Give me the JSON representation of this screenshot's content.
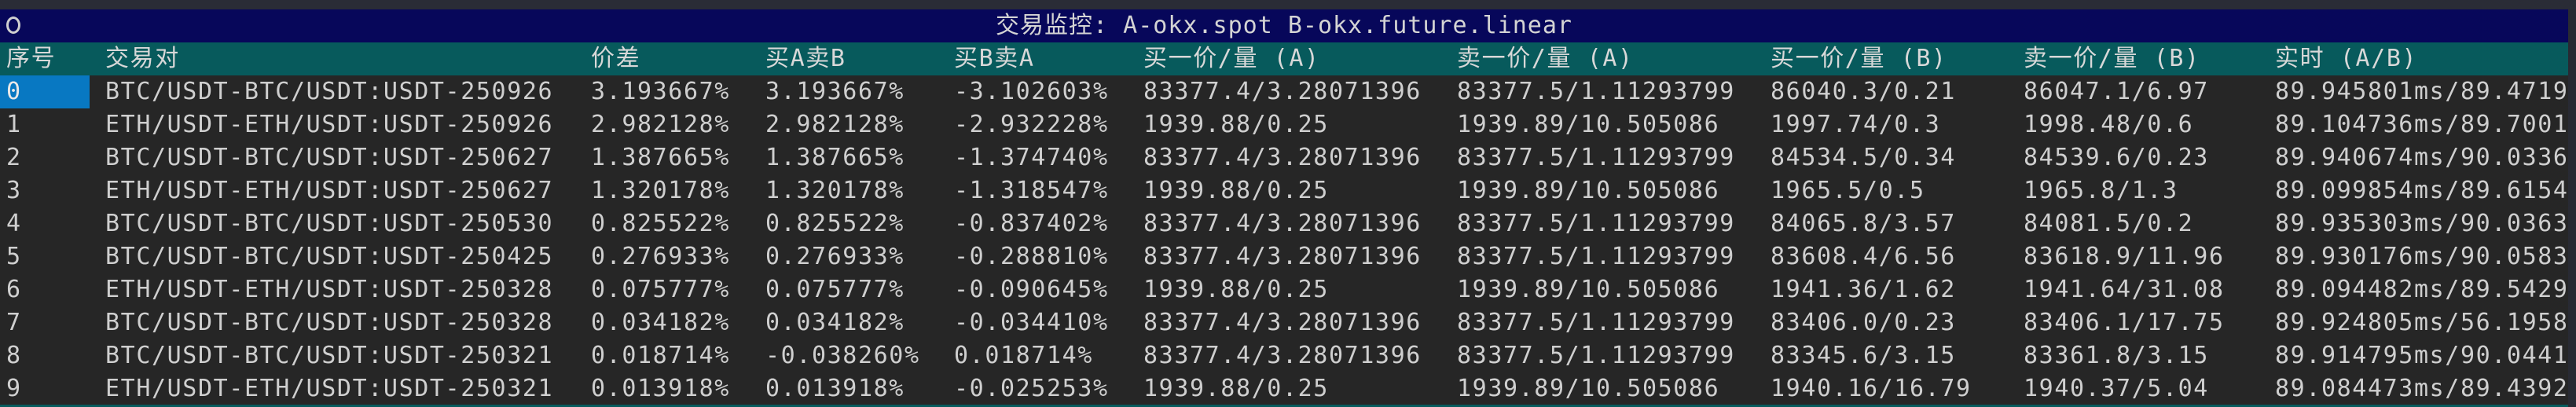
{
  "window": {
    "title": "交易监控: A-okx.spot B-okx.future.linear",
    "status_icon": "circle-icon"
  },
  "colors": {
    "title_bg": "#07075a",
    "header_bg": "#075a5c",
    "row_bg": "#262626",
    "selected_bg": "#0878c2",
    "text": "#cfcfcf"
  },
  "table": {
    "columns": [
      "序号",
      "交易对",
      "价差",
      "买A卖B",
      "买B卖A",
      "买一价/量 (A)",
      "卖一价/量 (A)",
      "买一价/量 (B)",
      "卖一价/量 (B)",
      "实时 (A/B)"
    ],
    "selected_row": 0,
    "rows": [
      [
        "0",
        "BTC/USDT-BTC/USDT:USDT-250926",
        "3.193667%",
        "3.193667%",
        "-3.102603%",
        "83377.4/3.28071396",
        "83377.5/1.11293799",
        "86040.3/0.21",
        "86047.1/6.97",
        "89.945801ms/89.4719"
      ],
      [
        "1",
        "ETH/USDT-ETH/USDT:USDT-250926",
        "2.982128%",
        "2.982128%",
        "-2.932228%",
        "1939.88/0.25",
        "1939.89/10.505086",
        "1997.74/0.3",
        "1998.48/0.6",
        "89.104736ms/89.7001"
      ],
      [
        "2",
        "BTC/USDT-BTC/USDT:USDT-250627",
        "1.387665%",
        "1.387665%",
        "-1.374740%",
        "83377.4/3.28071396",
        "83377.5/1.11293799",
        "84534.5/0.34",
        "84539.6/0.23",
        "89.940674ms/90.0336"
      ],
      [
        "3",
        "ETH/USDT-ETH/USDT:USDT-250627",
        "1.320178%",
        "1.320178%",
        "-1.318547%",
        "1939.88/0.25",
        "1939.89/10.505086",
        "1965.5/0.5",
        "1965.8/1.3",
        "89.099854ms/89.6154"
      ],
      [
        "4",
        "BTC/USDT-BTC/USDT:USDT-250530",
        "0.825522%",
        "0.825522%",
        "-0.837402%",
        "83377.4/3.28071396",
        "83377.5/1.11293799",
        "84065.8/3.57",
        "84081.5/0.2",
        "89.935303ms/90.0363"
      ],
      [
        "5",
        "BTC/USDT-BTC/USDT:USDT-250425",
        "0.276933%",
        "0.276933%",
        "-0.288810%",
        "83377.4/3.28071396",
        "83377.5/1.11293799",
        "83608.4/6.56",
        "83618.9/11.96",
        "89.930176ms/90.0583"
      ],
      [
        "6",
        "ETH/USDT-ETH/USDT:USDT-250328",
        "0.075777%",
        "0.075777%",
        "-0.090645%",
        "1939.88/0.25",
        "1939.89/10.505086",
        "1941.36/1.62",
        "1941.64/31.08",
        "89.094482ms/89.5429"
      ],
      [
        "7",
        "BTC/USDT-BTC/USDT:USDT-250328",
        "0.034182%",
        "0.034182%",
        "-0.034410%",
        "83377.4/3.28071396",
        "83377.5/1.11293799",
        "83406.0/0.23",
        "83406.1/17.75",
        "89.924805ms/56.1958"
      ],
      [
        "8",
        "BTC/USDT-BTC/USDT:USDT-250321",
        "0.018714%",
        "-0.038260%",
        "0.018714%",
        "83377.4/3.28071396",
        "83377.5/1.11293799",
        "83345.6/3.15",
        "83361.8/3.15",
        "89.914795ms/90.0441"
      ],
      [
        "9",
        "ETH/USDT-ETH/USDT:USDT-250321",
        "0.013918%",
        "0.013918%",
        "-0.025253%",
        "1939.88/0.25",
        "1939.89/10.505086",
        "1940.16/16.79",
        "1940.37/5.04",
        "89.084473ms/89.4392"
      ]
    ]
  }
}
